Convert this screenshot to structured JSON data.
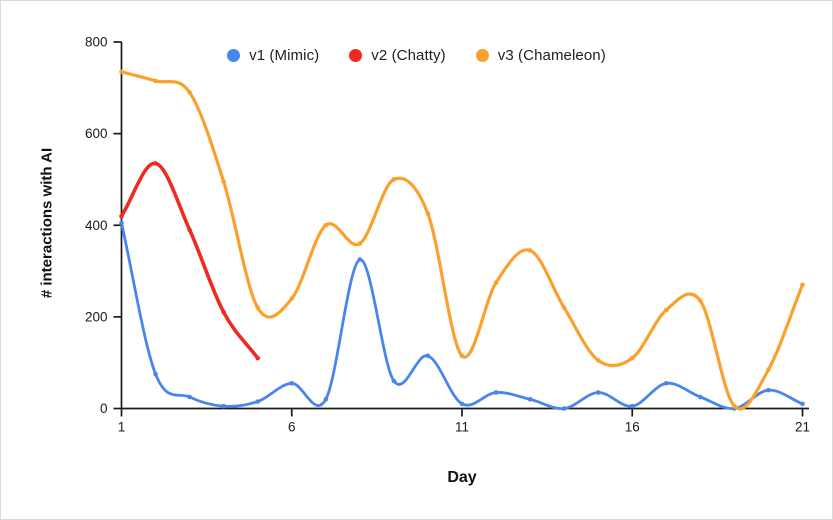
{
  "frame": {
    "background_color": "#ffffff",
    "border_color": "#d9d9d9",
    "axis_color": "#1a1a1a",
    "tick_label_color": "#1b1b1b"
  },
  "chart_data": {
    "type": "line",
    "smooth": true,
    "title": "",
    "xlabel": "Day",
    "ylabel": "# interactions with AI",
    "xlim": [
      1,
      21
    ],
    "ylim": [
      0,
      800
    ],
    "x_ticks": [
      1,
      6,
      11,
      16,
      21
    ],
    "y_ticks": [
      0,
      200,
      400,
      600,
      800
    ],
    "grid": false,
    "legend_position": "top",
    "x": [
      1,
      2,
      3,
      4,
      5,
      6,
      7,
      8,
      9,
      10,
      11,
      12,
      13,
      14,
      15,
      16,
      17,
      18,
      19,
      20,
      21
    ],
    "series": [
      {
        "name": "v1 (Mimic)",
        "color": "#4885ED",
        "values": [
          405,
          75,
          25,
          5,
          15,
          55,
          20,
          325,
          60,
          115,
          10,
          35,
          20,
          0,
          35,
          5,
          55,
          25,
          0,
          40,
          10
        ]
      },
      {
        "name": "v2 (Chatty)",
        "color": "#EE2B21",
        "values": [
          420,
          535,
          390,
          210,
          110
        ]
      },
      {
        "name": "v3 (Chameleon)",
        "color": "#FAA02D",
        "values": [
          735,
          715,
          690,
          495,
          220,
          240,
          400,
          360,
          500,
          425,
          115,
          275,
          345,
          220,
          105,
          110,
          215,
          235,
          5,
          85,
          270
        ]
      }
    ]
  }
}
